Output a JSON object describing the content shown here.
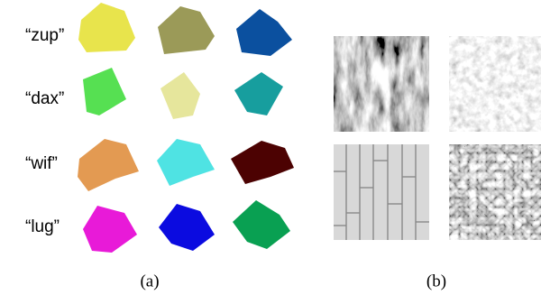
{
  "panel_a": {
    "labels": [
      "“zup”",
      "“dax”",
      "“wif”",
      "“lug”"
    ],
    "caption": "(a)"
  },
  "panel_b": {
    "caption": "(b)"
  }
}
